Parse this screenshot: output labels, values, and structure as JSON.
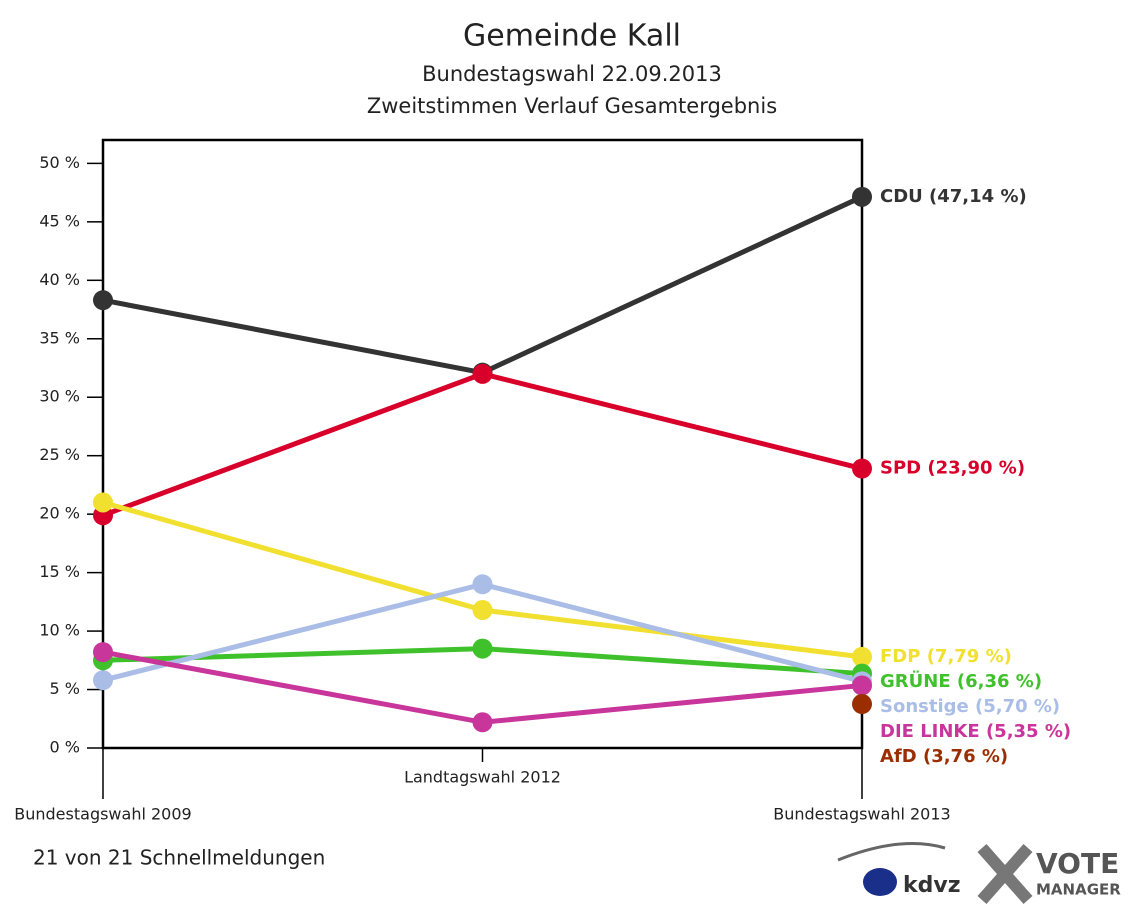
{
  "chart_data": {
    "type": "line",
    "title": "Gemeinde Kall",
    "subtitle": "Bundestagswahl 22.09.2013",
    "subtitle2": "Zweitstimmen Verlauf Gesamtergebnis",
    "footer": "21 von 21 Schnellmeldungen",
    "logos": [
      "kdvz",
      "VOTE",
      "MANAGER"
    ],
    "categories": [
      "Bundestagswahl 2009",
      "Landtagswahl 2012",
      "Bundestagswahl 2013"
    ],
    "ylim": [
      0,
      52
    ],
    "yticks": [
      {
        "value": 0,
        "label": "0 %"
      },
      {
        "value": 5,
        "label": "5 %"
      },
      {
        "value": 10,
        "label": "10 %"
      },
      {
        "value": 15,
        "label": "15 %"
      },
      {
        "value": 20,
        "label": "20 %"
      },
      {
        "value": 25,
        "label": "25 %"
      },
      {
        "value": 30,
        "label": "30 %"
      },
      {
        "value": 35,
        "label": "35 %"
      },
      {
        "value": 40,
        "label": "40 %"
      },
      {
        "value": 45,
        "label": "45 %"
      },
      {
        "value": 50,
        "label": "50 %"
      }
    ],
    "series": [
      {
        "name": "CDU",
        "color": "#333333",
        "values": [
          38.3,
          32.1,
          47.14
        ],
        "value_labels": [
          null,
          null,
          "CDU (47,14 %)"
        ]
      },
      {
        "name": "SPD",
        "color": "#d8002a",
        "values": [
          19.9,
          32.0,
          23.9
        ],
        "value_labels": [
          null,
          null,
          "SPD (23,90 %)"
        ]
      },
      {
        "name": "FDP",
        "color": "#f2e030",
        "values": [
          21.0,
          11.8,
          7.79
        ],
        "value_labels": [
          null,
          null,
          "FDP (7,79 %)"
        ]
      },
      {
        "name": "GRÜNE",
        "color": "#3ec12a",
        "values": [
          7.5,
          8.5,
          6.36
        ],
        "value_labels": [
          null,
          null,
          "GRÜNE (6,36 %)"
        ]
      },
      {
        "name": "Sonstige",
        "color": "#a9bde6",
        "values": [
          5.8,
          14.0,
          5.7
        ],
        "value_labels": [
          null,
          null,
          "Sonstige (5,70 %)"
        ]
      },
      {
        "name": "DIE LINKE",
        "color": "#c8359b",
        "values": [
          8.2,
          2.2,
          5.35
        ],
        "value_labels": [
          null,
          null,
          "DIE LINKE (5,35 %)"
        ]
      },
      {
        "name": "AfD",
        "color": "#9b2e00",
        "values": [
          null,
          null,
          3.76
        ],
        "value_labels": [
          null,
          null,
          "AfD (3,76 %)"
        ]
      }
    ]
  }
}
